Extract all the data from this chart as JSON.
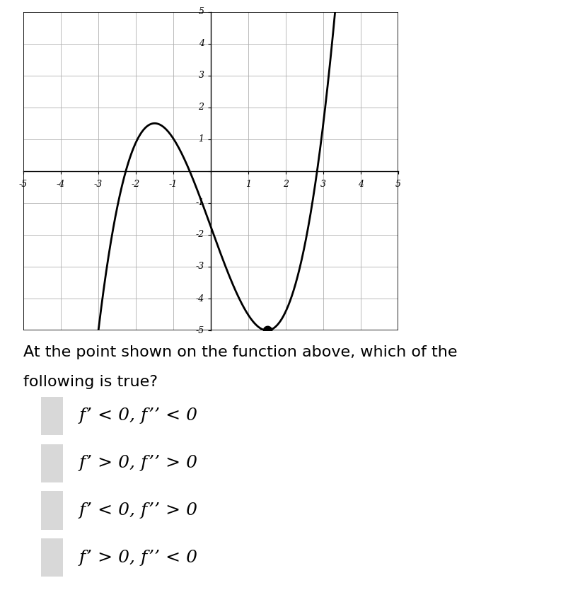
{
  "xlim": [
    -5,
    5
  ],
  "ylim": [
    -5,
    5
  ],
  "xtick_vals": [
    -5,
    -4,
    -3,
    -2,
    -1,
    1,
    2,
    3,
    4,
    5
  ],
  "ytick_vals": [
    -5,
    -4,
    -3,
    -2,
    -1,
    1,
    2,
    3,
    4,
    5
  ],
  "graph_color": "#000000",
  "grid_color": "#b0b0b0",
  "background_color": "#ffffff",
  "question_line1": "At the point shown on the function above, which of the",
  "question_line2": "following is true?",
  "choices": [
    "f’ < 0, f’’ < 0",
    "f’ > 0, f’’ > 0",
    "f’ < 0, f’’ > 0",
    "f’ > 0, f’’ < 0"
  ],
  "fig_width": 8.28,
  "fig_height": 8.34,
  "line_width": 2.0,
  "dot_x": 1.5,
  "poly_a": 0.48148,
  "poly_b": 0.0,
  "poly_c": -3.25,
  "poly_d": -1.75,
  "question_fontsize": 16,
  "choice_fontsize": 18
}
